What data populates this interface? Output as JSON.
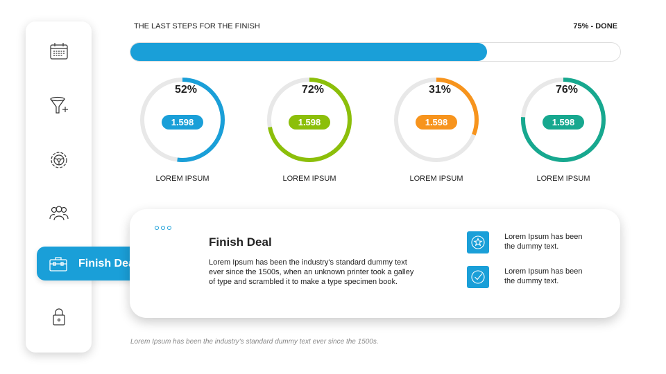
{
  "sidebar": {
    "items": [
      {
        "icon": "calendar-icon"
      },
      {
        "icon": "funnel-add-icon"
      },
      {
        "icon": "gear-steering-icon"
      },
      {
        "icon": "team-icon"
      },
      {
        "icon": "briefcase-icon",
        "label": "Finish Deal",
        "active": true
      },
      {
        "icon": "lock-icon"
      }
    ]
  },
  "header": {
    "title": "THE LAST STEPS FOR THE FINISH",
    "status": "75% - DONE",
    "progress_percent": 75
  },
  "colors": {
    "blue": "#1a9fd8",
    "green": "#8cbf0a",
    "orange": "#f7941d",
    "teal": "#17a88f",
    "track": "#e8e8e8"
  },
  "rings": [
    {
      "percent_label": "52%",
      "percent": 52,
      "value": "1.598",
      "label": "LOREM IPSUM",
      "color": "#1a9fd8"
    },
    {
      "percent_label": "72%",
      "percent": 72,
      "value": "1.598",
      "label": "LOREM IPSUM",
      "color": "#8cbf0a"
    },
    {
      "percent_label": "31%",
      "percent": 31,
      "value": "1.598",
      "label": "LOREM IPSUM",
      "color": "#f7941d"
    },
    {
      "percent_label": "76%",
      "percent": 76,
      "value": "1.598",
      "label": "LOREM IPSUM",
      "color": "#17a88f"
    }
  ],
  "card": {
    "title": "Finish Deal",
    "body": "Lorem Ipsum has been the industry's standard dummy text ever since the 1500s, when an unknown printer took a galley of type and scrambled it to make a type specimen book.",
    "features": [
      {
        "icon": "star-badge-icon",
        "text": "Lorem Ipsum has been the dummy text."
      },
      {
        "icon": "check-circle-icon",
        "text": "Lorem Ipsum has been the dummy text."
      }
    ]
  },
  "footer": "Lorem Ipsum has been the industry's standard dummy text ever since the 1500s."
}
